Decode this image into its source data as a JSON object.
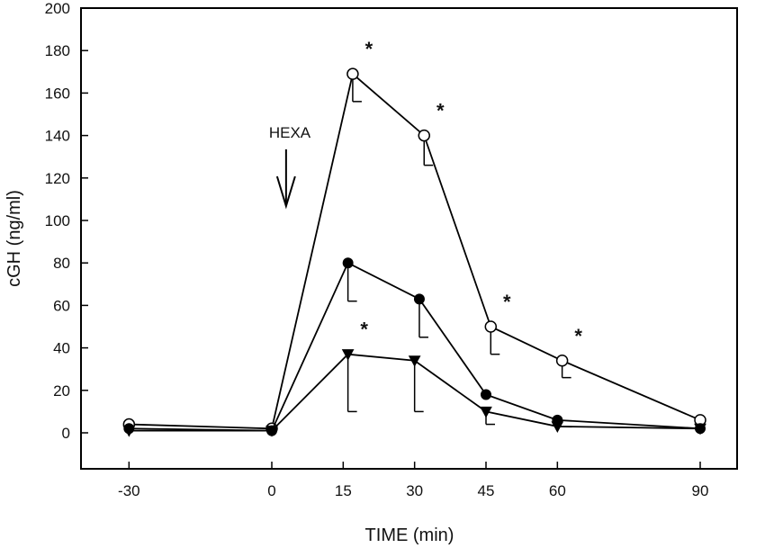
{
  "chart_data": {
    "type": "line",
    "title": "",
    "xlabel": "TIME (min)",
    "ylabel": "cGH (ng/ml)",
    "ylim": [
      -20,
      200
    ],
    "yticks": [
      0,
      20,
      40,
      60,
      80,
      100,
      120,
      140,
      160,
      180,
      200
    ],
    "xticks": [
      -30,
      0,
      15,
      30,
      45,
      60,
      90
    ],
    "grid": false,
    "annotations": {
      "arrow_label": "HEXA",
      "arrow_x": 3,
      "significance_symbol": "*"
    },
    "series": [
      {
        "name": "open circles",
        "marker": "circle-open",
        "points": [
          {
            "x": -30,
            "y": 4,
            "err": null,
            "sig": false
          },
          {
            "x": 0,
            "y": 2,
            "err": null,
            "sig": false
          },
          {
            "x": 17,
            "y": 169,
            "err": 13,
            "sig": true
          },
          {
            "x": 32,
            "y": 140,
            "err": 14,
            "sig": true
          },
          {
            "x": 46,
            "y": 50,
            "err": 13,
            "sig": true
          },
          {
            "x": 61,
            "y": 34,
            "err": 8,
            "sig": true
          },
          {
            "x": 90,
            "y": 6,
            "err": null,
            "sig": false
          }
        ]
      },
      {
        "name": "filled circles",
        "marker": "circle-filled",
        "points": [
          {
            "x": -30,
            "y": 2,
            "err": null,
            "sig": false
          },
          {
            "x": 0,
            "y": 1,
            "err": null,
            "sig": false
          },
          {
            "x": 16,
            "y": 80,
            "err": 18,
            "sig": false
          },
          {
            "x": 31,
            "y": 63,
            "err": 18,
            "sig": false
          },
          {
            "x": 45,
            "y": 18,
            "err": null,
            "sig": false
          },
          {
            "x": 60,
            "y": 6,
            "err": null,
            "sig": false
          },
          {
            "x": 90,
            "y": 2,
            "err": null,
            "sig": false
          }
        ]
      },
      {
        "name": "filled triangles",
        "marker": "triangle-down-filled",
        "points": [
          {
            "x": -30,
            "y": 1,
            "err": null,
            "sig": false
          },
          {
            "x": 0,
            "y": 1,
            "err": null,
            "sig": false
          },
          {
            "x": 16,
            "y": 37,
            "err": 27,
            "sig": true
          },
          {
            "x": 30,
            "y": 34,
            "err": 24,
            "sig": false
          },
          {
            "x": 45,
            "y": 10,
            "err": 6,
            "sig": false
          },
          {
            "x": 60,
            "y": 3,
            "err": null,
            "sig": false
          },
          {
            "x": 90,
            "y": 2,
            "err": null,
            "sig": false
          }
        ]
      }
    ]
  }
}
